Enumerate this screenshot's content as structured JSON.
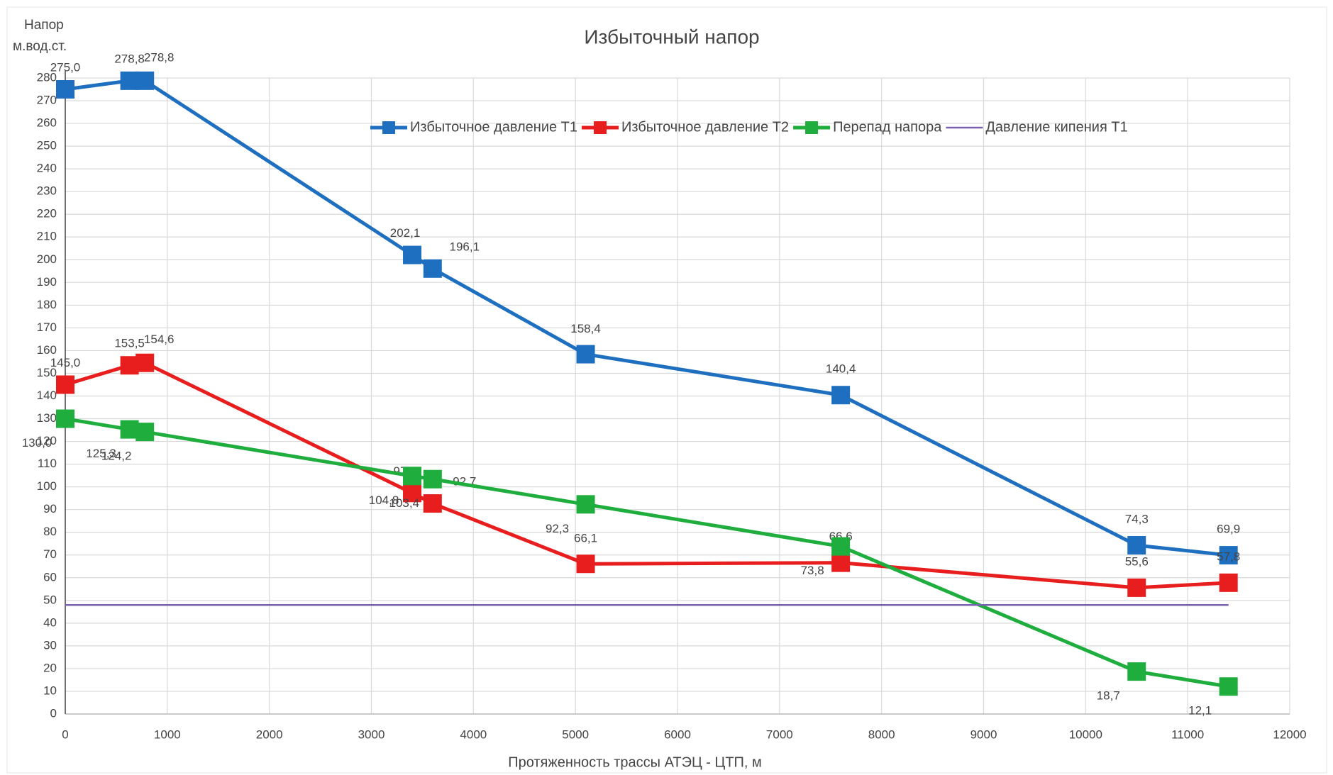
{
  "chart_data": {
    "type": "line",
    "title": "Избыточный напор",
    "y_label": [
      "Напор",
      "м.вод.ст."
    ],
    "x_label": "Протяженность трассы АТЭЦ - ЦТП, м",
    "xlim": [
      0,
      12000
    ],
    "xticks": [
      0,
      1000,
      2000,
      3000,
      4000,
      5000,
      6000,
      7000,
      8000,
      9000,
      10000,
      11000,
      12000
    ],
    "ylim": [
      0,
      280
    ],
    "yticks": [
      0,
      10,
      20,
      30,
      40,
      50,
      60,
      70,
      80,
      90,
      100,
      110,
      120,
      130,
      140,
      150,
      160,
      170,
      180,
      190,
      200,
      210,
      220,
      230,
      240,
      250,
      260,
      270,
      280
    ],
    "grid": true,
    "legend": "top",
    "series": [
      {
        "name": "Избыточное давление Т1",
        "color": "#1f6fc0",
        "markers": true,
        "x": [
          0,
          630,
          780,
          3400,
          3600,
          5100,
          7600,
          10500,
          11400
        ],
        "values": [
          275.0,
          278.8,
          278.8,
          202.1,
          196.1,
          158.4,
          140.4,
          74.3,
          69.9
        ],
        "value_labels": [
          "275,0",
          "278,8",
          "278,8",
          "202,1",
          "196,1",
          "158,4",
          "140,4",
          "74,3",
          "69,9"
        ]
      },
      {
        "name": "Избыточное давление Т2",
        "color": "#e81e1e",
        "markers": true,
        "x": [
          0,
          630,
          780,
          3400,
          3600,
          5100,
          7600,
          10500,
          11400
        ],
        "values": [
          145.0,
          153.5,
          154.6,
          97.3,
          92.7,
          66.1,
          66.6,
          55.6,
          57.8
        ],
        "value_labels": [
          "145,0",
          "153,5",
          "154,6",
          "97,3",
          "92,7",
          "66,1",
          "66,6",
          "55,6",
          "57,8"
        ]
      },
      {
        "name": "Перепад напора",
        "color": "#1fae3e",
        "markers": true,
        "x": [
          0,
          630,
          780,
          3400,
          3600,
          5100,
          7600,
          10500,
          11400
        ],
        "values": [
          130.0,
          125.3,
          124.2,
          104.8,
          103.4,
          92.3,
          73.8,
          18.7,
          12.1
        ],
        "value_labels": [
          "130,0",
          "125,3",
          "124,2",
          "104,8",
          "103,4",
          "92,3",
          "73,8",
          "18,7",
          "12,1"
        ]
      },
      {
        "name": "Давление кипения Т1",
        "color": "#7a62b0",
        "markers": false,
        "x": [
          0,
          11400
        ],
        "values": [
          48,
          48
        ]
      }
    ]
  }
}
